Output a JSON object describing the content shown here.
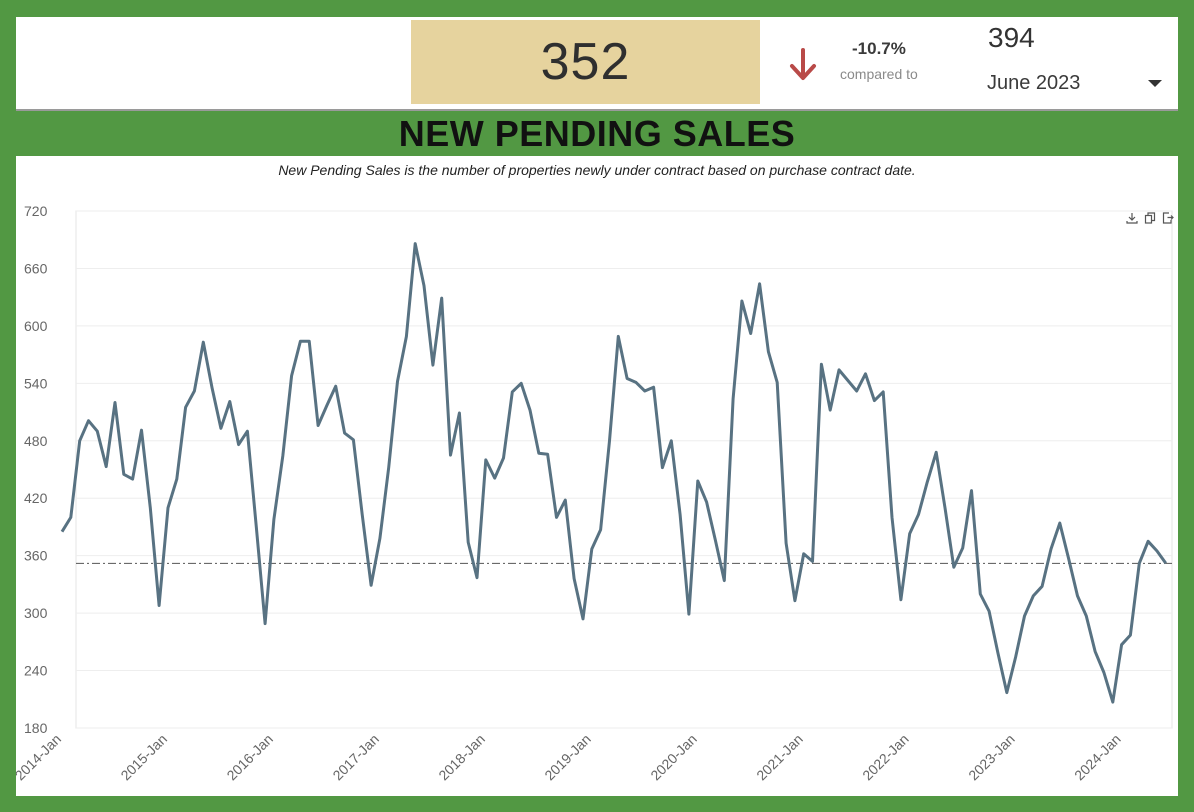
{
  "kpi": {
    "current_value": "352",
    "change_pct": "-10.7%",
    "compared_label": "compared to",
    "previous_value": "394",
    "selected_period": "June 2023"
  },
  "page_title": "NEW PENDING SALES",
  "description": "New Pending Sales is the number of properties newly under contract based on purchase contract date.",
  "icons": [
    "arrow-down-icon",
    "caret-down-icon",
    "download-icon",
    "copy-icon",
    "export-icon"
  ],
  "colors": {
    "background": "#529843",
    "kpi_highlight": "#e6d39e",
    "line": "#587282",
    "arrow": "#b94a48"
  },
  "chart_data": {
    "type": "line",
    "x_tick_labels": [
      "2014-Jan",
      "2015-Jan",
      "2016-Jan",
      "2017-Jan",
      "2018-Jan",
      "2019-Jan",
      "2020-Jan",
      "2021-Jan",
      "2022-Jan",
      "2023-Jan",
      "2024-Jan"
    ],
    "x_start": "2014-Jan",
    "x_end": "2024-Jun",
    "ylim": [
      180,
      720
    ],
    "y_ticks": [
      180,
      240,
      300,
      360,
      420,
      480,
      540,
      600,
      660,
      720
    ],
    "reference_line": 352,
    "grid": true,
    "series": [
      {
        "values": [
          385,
          400,
          480,
          501,
          490,
          453,
          520,
          445,
          440,
          491,
          410,
          308,
          410,
          440,
          515,
          532,
          583,
          535,
          493,
          521,
          476,
          490,
          390,
          289,
          398,
          464,
          548,
          584,
          584,
          496,
          517,
          537,
          488,
          481,
          403,
          329,
          378,
          452,
          542,
          589,
          686,
          642,
          559,
          629,
          465,
          509,
          374,
          337,
          460,
          441,
          462,
          531,
          540,
          512,
          467,
          466,
          400,
          418,
          336,
          294,
          367,
          387,
          480,
          589,
          545,
          541,
          532,
          536,
          452,
          480,
          403,
          299,
          438,
          416,
          376,
          334,
          524,
          626,
          592,
          644,
          573,
          541,
          373,
          313,
          362,
          354,
          560,
          512,
          554,
          543,
          532,
          550,
          522,
          531,
          400,
          314,
          383,
          403,
          437,
          468,
          410,
          348,
          368,
          428,
          320,
          302,
          258,
          217,
          254,
          297,
          318,
          328,
          367,
          394,
          357,
          318,
          297,
          260,
          238,
          207,
          267,
          277,
          352,
          375,
          365,
          352
        ]
      }
    ]
  }
}
